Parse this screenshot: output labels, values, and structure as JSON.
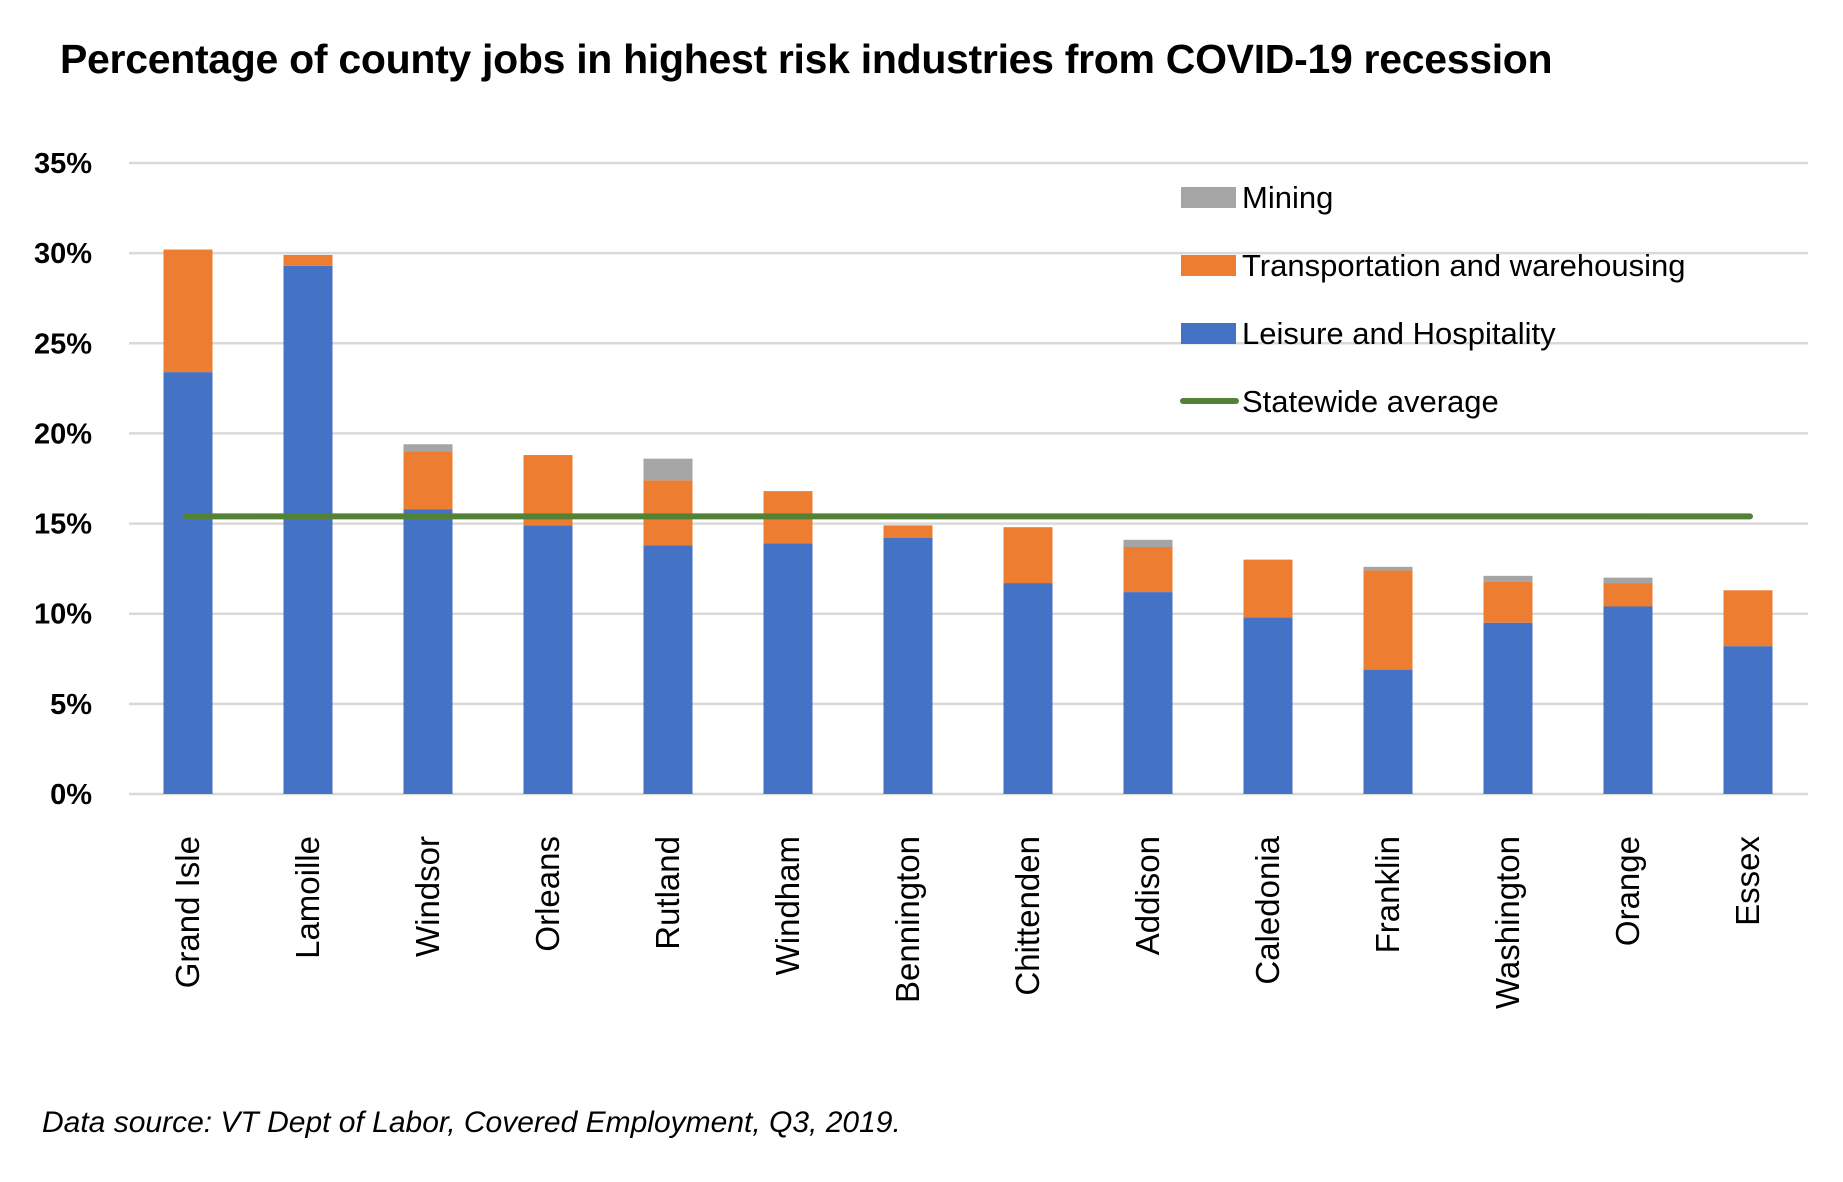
{
  "chart_data": {
    "type": "bar",
    "stacked": true,
    "title": "Percentage of county jobs in highest risk industries from COVID-19 recession",
    "xlabel": "",
    "ylabel": "",
    "ylim": [
      0,
      0.35
    ],
    "yticks": [
      0,
      0.05,
      0.1,
      0.15,
      0.2,
      0.25,
      0.3,
      0.35
    ],
    "ytick_labels": [
      "0%",
      "5%",
      "10%",
      "15%",
      "20%",
      "25%",
      "30%",
      "35%"
    ],
    "grid": true,
    "legend_position": "top-right",
    "categories": [
      "Grand Isle",
      "Lamoille",
      "Windsor",
      "Orleans",
      "Rutland",
      "Windham",
      "Bennington",
      "Chittenden",
      "Addison",
      "Caledonia",
      "Franklin",
      "Washington",
      "Orange",
      "Essex"
    ],
    "series": [
      {
        "name": "Leisure and Hospitality",
        "color": "#4472C4",
        "values": [
          0.234,
          0.293,
          0.158,
          0.149,
          0.138,
          0.139,
          0.142,
          0.117,
          0.112,
          0.098,
          0.069,
          0.095,
          0.104,
          0.082
        ]
      },
      {
        "name": "Transportation and warehousing",
        "color": "#ED7D31",
        "values": [
          0.068,
          0.006,
          0.032,
          0.039,
          0.036,
          0.029,
          0.007,
          0.031,
          0.025,
          0.032,
          0.055,
          0.023,
          0.013,
          0.031
        ]
      },
      {
        "name": "Mining",
        "color": "#A5A5A5",
        "values": [
          0.0,
          0.0,
          0.004,
          0.0,
          0.012,
          0.0,
          0.0,
          0.0,
          0.004,
          0.0,
          0.002,
          0.003,
          0.003,
          0.0
        ]
      }
    ],
    "reference_lines": [
      {
        "name": "Statewide average",
        "color": "#548235",
        "value": 0.154
      }
    ],
    "legend": [
      {
        "label": "Mining",
        "kind": "swatch",
        "color": "#A5A5A5"
      },
      {
        "label": "Transportation and warehousing",
        "kind": "swatch",
        "color": "#ED7D31"
      },
      {
        "label": "Leisure and Hospitality",
        "kind": "swatch",
        "color": "#4472C4"
      },
      {
        "label": "Statewide average",
        "kind": "line",
        "color": "#548235"
      }
    ],
    "annotations": [
      "Data source: VT Dept of Labor, Covered Employment, Q3, 2019."
    ]
  },
  "source_note": "Data source: VT Dept of Labor, Covered Employment, Q3, 2019.",
  "colors": {
    "gridline": "#D9D9D9",
    "text": "#000000"
  }
}
